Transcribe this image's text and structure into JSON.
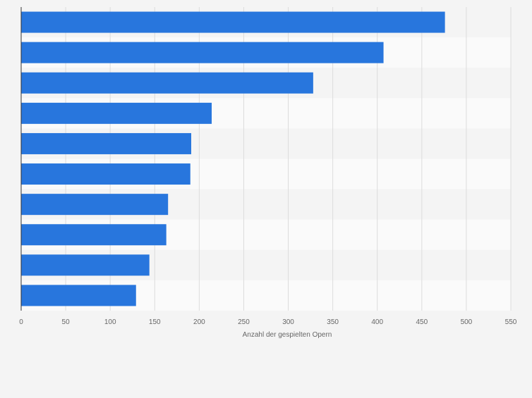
{
  "chart_data": {
    "type": "bar",
    "orientation": "horizontal",
    "title": "",
    "ylabel": "",
    "xlabel": "Anzahl der gespielten Opern",
    "xlim": [
      0,
      550
    ],
    "xticks": [
      0,
      50,
      100,
      150,
      200,
      250,
      300,
      350,
      400,
      450,
      500,
      550
    ],
    "xtick_labels": [
      "0",
      "50",
      "100",
      "150",
      "200",
      "250",
      "300",
      "350",
      "400",
      "450",
      "500",
      "550"
    ],
    "categories": [
      "",
      "",
      "",
      "",
      "",
      "",
      "",
      "",
      "",
      ""
    ],
    "values": [
      476,
      407,
      328,
      214,
      191,
      190,
      165,
      163,
      144,
      129
    ],
    "grid": true,
    "legend": "none",
    "colors": {
      "bar": "#2876dd",
      "grid": "#dcdcdc",
      "axis": "#333333",
      "band_light": "#fafafa",
      "band_dark": "#f4f4f4",
      "tick_text": "#666666",
      "background": "#f4f4f4"
    }
  }
}
